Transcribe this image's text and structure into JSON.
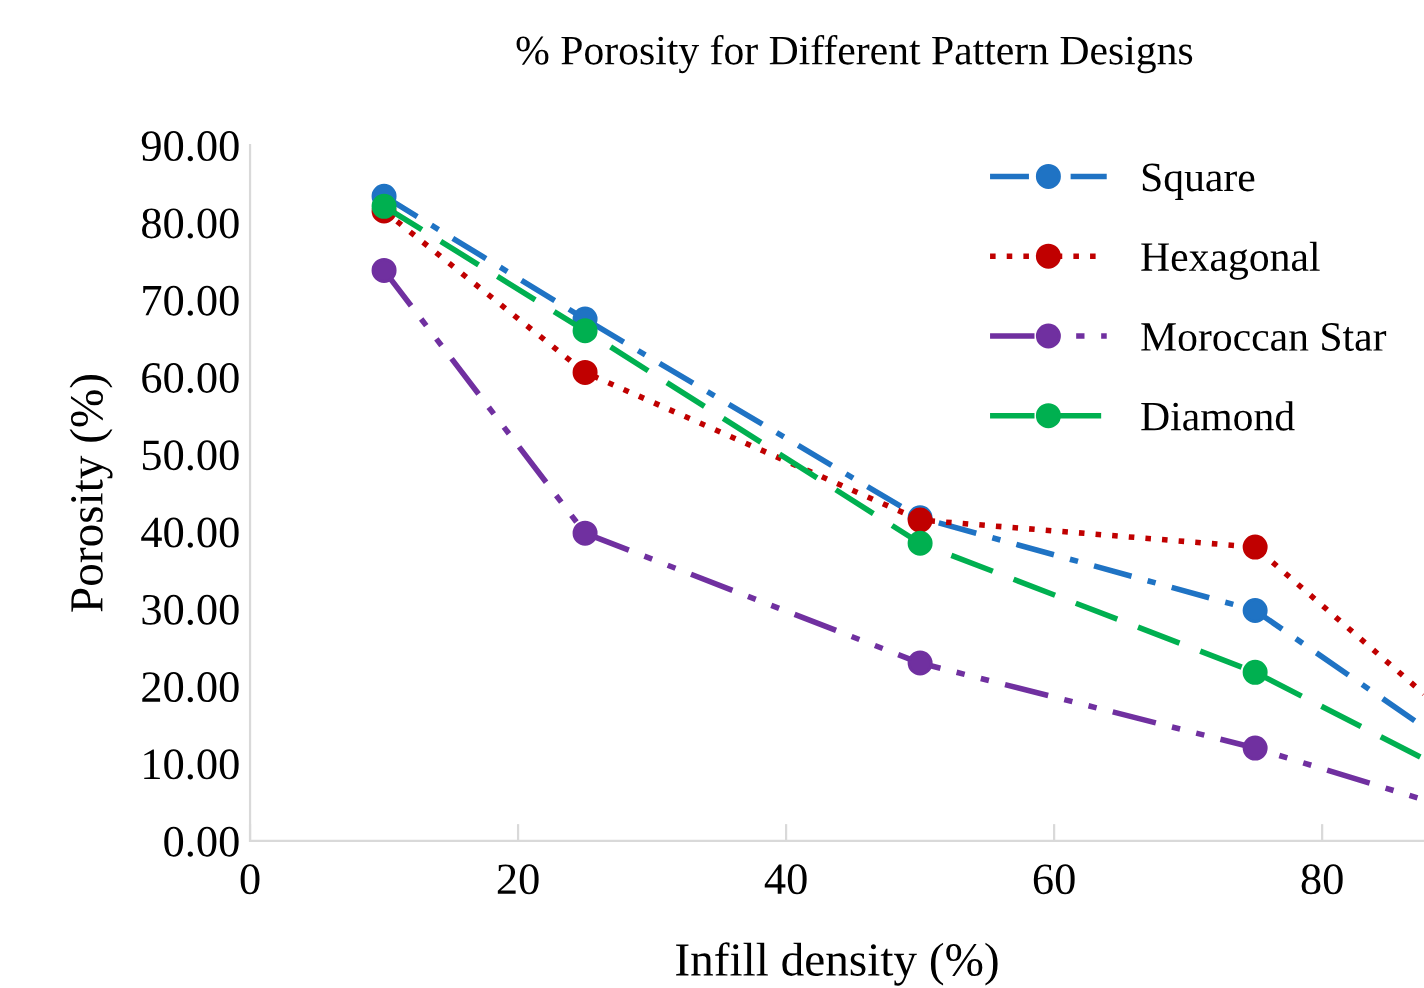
{
  "chart_data": {
    "type": "line",
    "title": "% Porosity for Different Pattern Designs",
    "xlabel": "Infill density (%)",
    "ylabel": "Porosity (%)",
    "xlim": [
      0,
      87.6
    ],
    "xticks": [
      0,
      20,
      40,
      60,
      80
    ],
    "ylim": [
      0,
      90
    ],
    "yticks": [
      {
        "value": 0,
        "label": "0.00"
      },
      {
        "value": 10,
        "label": "10.00"
      },
      {
        "value": 20,
        "label": "20.00"
      },
      {
        "value": 30,
        "label": "30.00"
      },
      {
        "value": 40,
        "label": "40.00"
      },
      {
        "value": 50,
        "label": "50.00"
      },
      {
        "value": 60,
        "label": "60.00"
      },
      {
        "value": 70,
        "label": "70.00"
      },
      {
        "value": 80,
        "label": "80.00"
      },
      {
        "value": 90,
        "label": "90.00"
      }
    ],
    "x": [
      10,
      25,
      50,
      75,
      87.6
    ],
    "marker": "circle",
    "grid": false,
    "legend": "top right",
    "series": [
      {
        "name": "Square",
        "color": "#1f73c4",
        "line_style": "dashdot",
        "values": [
          83.4,
          67.5,
          41.8,
          29.8,
          14.7
        ]
      },
      {
        "name": "Hexagonal",
        "color": "#c00000",
        "line_style": "dotted",
        "values": [
          81.5,
          60.6,
          41.5,
          38.0,
          19.0
        ]
      },
      {
        "name": "Moroccan Star",
        "color": "#7030a0",
        "line_style": "dashdotdot",
        "values": [
          73.8,
          39.8,
          23.0,
          12.0,
          5.3
        ]
      },
      {
        "name": "Diamond",
        "color": "#00b050",
        "line_style": "dashed",
        "values": [
          82.1,
          66.0,
          38.5,
          21.8,
          10.6
        ]
      }
    ]
  }
}
